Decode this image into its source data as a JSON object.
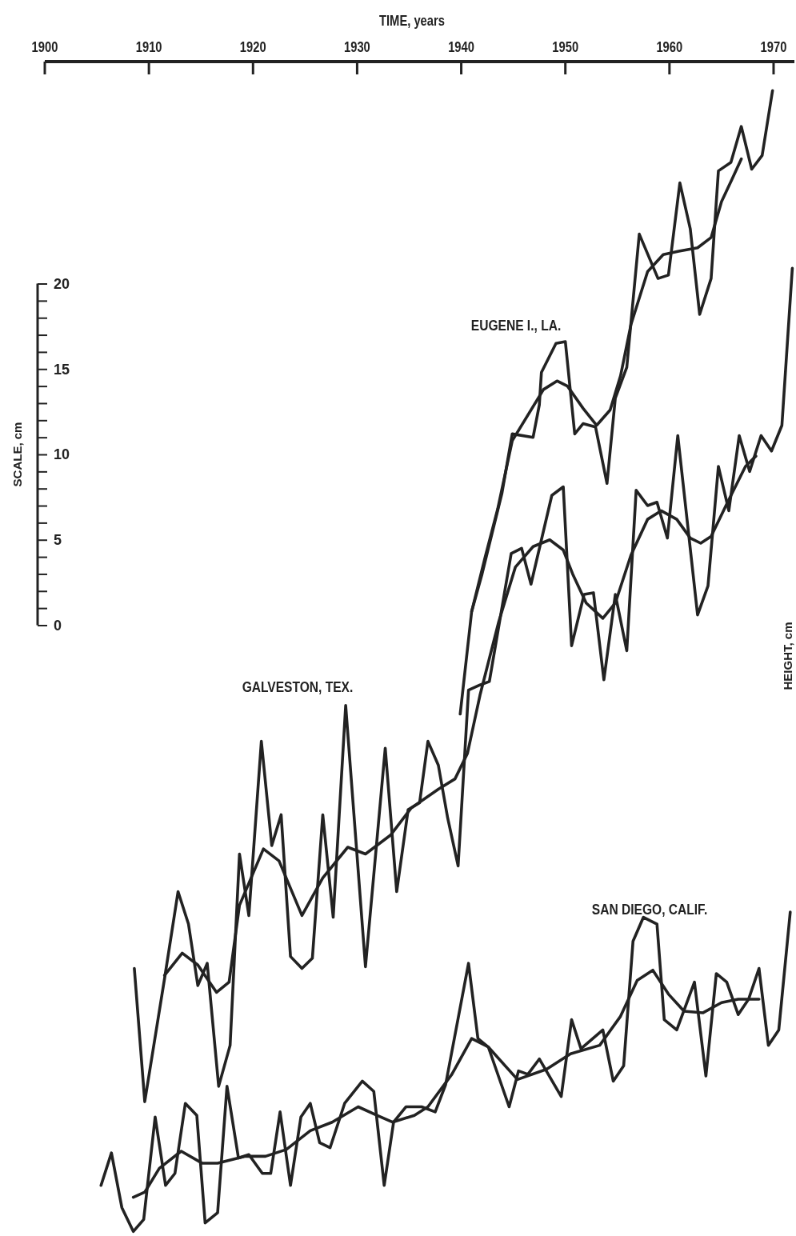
{
  "chart_data": {
    "type": "line",
    "xlabel": "TIME, years",
    "ylabel": "SCALE, cm",
    "y2label": "HEIGHT, cm",
    "xlim": [
      1900,
      1972
    ],
    "xticks": [
      1900,
      1910,
      1920,
      1930,
      1940,
      1950,
      1960,
      1970
    ],
    "ylim": [
      -36,
      33
    ],
    "yticks": [
      0,
      {
        "value": 1,
        "label": null
      },
      {
        "value": 2,
        "label": null
      },
      {
        "value": 3,
        "label": null
      },
      {
        "value": 4,
        "label": null
      },
      5,
      {
        "value": 6,
        "label": null
      },
      {
        "value": 7,
        "label": null
      },
      {
        "value": 8,
        "label": null
      },
      {
        "value": 9,
        "label": null
      },
      10,
      {
        "value": 11,
        "label": null
      },
      {
        "value": 12,
        "label": null
      },
      {
        "value": 13,
        "label": null
      },
      {
        "value": 14,
        "label": null
      },
      15,
      {
        "value": 16,
        "label": null
      },
      {
        "value": 17,
        "label": null
      },
      {
        "value": 18,
        "label": null
      },
      {
        "value": 19,
        "label": null
      },
      20
    ],
    "series": [
      {
        "name": "GALVESTON, TEX.",
        "color": "#222222",
        "x": [
          1908.6,
          1909.6,
          1911.5,
          1912.8,
          1913.8,
          1914.7,
          1915.6,
          1916.7,
          1917.8,
          1918.7,
          1919.6,
          1920.8,
          1921.8,
          1922.7,
          1923.6,
          1924.7,
          1925.7,
          1926.7,
          1927.7,
          1928.9,
          1930.8,
          1932.7,
          1933.8,
          1934.9,
          1936.0,
          1936.8,
          1937.8,
          1938.7,
          1939.7,
          1940.7,
          1941.8,
          1942.7,
          1944.8,
          1945.8,
          1946.7,
          1948.7,
          1949.8,
          1950.6,
          1951.8,
          1952.7,
          1953.7,
          1954.8,
          1955.9,
          1956.8,
          1957.9,
          1958.8,
          1959.8,
          1960.8,
          1962.7,
          1963.7,
          1964.7,
          1965.7,
          1966.7,
          1967.7,
          1968.8,
          1969.8,
          1970.8,
          1971.8
        ],
        "values": [
          -20.1,
          -27.9,
          -20.7,
          -15.6,
          -17.5,
          -21.1,
          -19.8,
          -27.0,
          -24.6,
          -13.4,
          -17.0,
          -6.8,
          -12.9,
          -11.1,
          -19.4,
          -20.1,
          -19.5,
          -11.1,
          -17.1,
          -4.7,
          -20.0,
          -7.2,
          -15.6,
          -10.8,
          -10.4,
          -6.8,
          -8.2,
          -11.3,
          -14.1,
          -3.8,
          -3.5,
          -3.3,
          4.2,
          4.5,
          2.4,
          7.6,
          8.1,
          -1.2,
          1.8,
          1.9,
          -3.2,
          1.8,
          -1.5,
          7.9,
          7.0,
          7.2,
          5.1,
          11.1,
          0.6,
          2.3,
          9.3,
          6.7,
          11.1,
          9.0,
          11.1,
          10.2,
          11.7,
          20.9
        ]
      },
      {
        "color": "#222222",
        "x": [
          1911.5,
          1913.2,
          1914.7,
          1916.5,
          1917.7,
          1918.7,
          1921.0,
          1922.5,
          1924.7,
          1926.7,
          1929.1,
          1930.8,
          1933.2,
          1935.2,
          1937.8,
          1939.4,
          1940.6,
          1941.8,
          1943.6,
          1945.2,
          1946.9,
          1948.5,
          1949.8,
          1950.7,
          1952.0,
          1953.6,
          1954.8,
          1956.3,
          1957.9,
          1959.2,
          1960.7,
          1962.0,
          1963.0,
          1964.0,
          1965.5,
          1967.3,
          1968.3
        ],
        "values": [
          -20.5,
          -19.2,
          -19.9,
          -21.5,
          -20.9,
          -16.4,
          -13.1,
          -13.8,
          -17.0,
          -14.8,
          -13.0,
          -13.4,
          -12.3,
          -10.7,
          -9.6,
          -9.0,
          -7.5,
          -4.1,
          0.2,
          3.4,
          4.6,
          5.0,
          4.4,
          3.0,
          1.3,
          0.4,
          1.3,
          4.1,
          6.2,
          6.7,
          6.2,
          5.1,
          4.8,
          5.2,
          7.1,
          9.3,
          9.9
        ]
      },
      {
        "name": "EUGENE I., LA.",
        "color": "#222222",
        "x": [
          1939.9,
          1941.0,
          1942.0,
          1943.9,
          1944.9,
          1946.9,
          1947.5,
          1947.7,
          1949.1,
          1950.0,
          1950.9,
          1951.7,
          1952.9,
          1954.0,
          1954.8,
          1955.9,
          1957.1,
          1958.9,
          1959.9,
          1961.0,
          1962.0,
          1962.9,
          1964.0,
          1964.7,
          1965.9,
          1966.9,
          1967.9,
          1968.9,
          1969.9
        ],
        "values": [
          -5.2,
          0.8,
          3.0,
          7.7,
          11.2,
          11.0,
          12.9,
          14.8,
          16.5,
          16.6,
          11.2,
          11.8,
          11.6,
          8.3,
          13.3,
          15.1,
          22.9,
          20.3,
          20.5,
          25.9,
          23.2,
          18.2,
          20.3,
          26.6,
          27.1,
          29.2,
          26.7,
          27.5,
          31.3
        ]
      },
      {
        "color": "#222222",
        "x": [
          1941.0,
          1942.3,
          1943.5,
          1944.9,
          1947.9,
          1949.2,
          1950.2,
          1951.7,
          1953.0,
          1954.3,
          1955.3,
          1956.3,
          1957.9,
          1959.4,
          1960.9,
          1962.7,
          1964.0,
          1965.0,
          1966.0,
          1966.9
        ],
        "values": [
          0.8,
          4.0,
          6.8,
          10.8,
          13.8,
          14.3,
          14.0,
          12.7,
          11.7,
          12.6,
          14.6,
          17.6,
          20.7,
          21.7,
          21.9,
          22.1,
          22.7,
          24.8,
          26.1,
          27.3
        ]
      },
      {
        "name": "SAN DIEGO, CALIF.",
        "color": "#222222",
        "x": [
          1905.4,
          1906.4,
          1907.4,
          1908.5,
          1909.5,
          1910.6,
          1911.6,
          1912.5,
          1913.5,
          1914.6,
          1915.4,
          1916.6,
          1917.5,
          1918.6,
          1919.6,
          1920.9,
          1921.7,
          1922.6,
          1923.6,
          1924.6,
          1925.5,
          1926.4,
          1927.4,
          1928.8,
          1930.5,
          1931.6,
          1932.6,
          1933.5,
          1934.7,
          1936.2,
          1937.5,
          1938.5,
          1940.7,
          1941.6,
          1942.6,
          1944.6,
          1945.5,
          1946.4,
          1947.5,
          1949.6,
          1950.6,
          1951.5,
          1953.6,
          1954.6,
          1955.6,
          1956.5,
          1957.5,
          1958.8,
          1959.5,
          1960.7,
          1962.4,
          1963.5,
          1964.5,
          1965.5,
          1966.6,
          1967.6,
          1968.6,
          1969.5,
          1970.5,
          1971.6
        ],
        "values": [
          -32.8,
          -30.9,
          -34.1,
          -35.5,
          -34.8,
          -28.8,
          -32.8,
          -32.1,
          -28.0,
          -28.7,
          -35.0,
          -34.4,
          -27.0,
          -31.2,
          -31.0,
          -32.1,
          -32.1,
          -28.5,
          -32.8,
          -28.8,
          -28.0,
          -30.3,
          -30.6,
          -28.0,
          -26.7,
          -27.3,
          -32.8,
          -29.1,
          -28.2,
          -28.2,
          -28.5,
          -26.9,
          -19.8,
          -24.2,
          -24.7,
          -28.2,
          -26.1,
          -26.3,
          -25.4,
          -27.6,
          -23.1,
          -24.8,
          -23.7,
          -26.7,
          -25.8,
          -18.5,
          -17.1,
          -17.5,
          -23.1,
          -23.7,
          -20.9,
          -26.4,
          -20.4,
          -20.9,
          -22.8,
          -21.9,
          -20.1,
          -24.6,
          -23.7,
          -16.8
        ]
      },
      {
        "color": "#222222",
        "x": [
          1908.5,
          1909.6,
          1911.0,
          1913.1,
          1915.1,
          1916.6,
          1919.2,
          1921.2,
          1923.2,
          1925.5,
          1927.6,
          1930.1,
          1931.9,
          1933.4,
          1935.5,
          1936.8,
          1939.1,
          1941.0,
          1942.6,
          1945.4,
          1948.2,
          1950.5,
          1953.3,
          1955.3,
          1956.9,
          1958.4,
          1959.9,
          1961.4,
          1963.2,
          1965.0,
          1966.6,
          1968.6
        ],
        "values": [
          -33.5,
          -33.2,
          -31.8,
          -30.8,
          -31.5,
          -31.5,
          -31.1,
          -31.1,
          -30.7,
          -29.6,
          -29.1,
          -28.2,
          -28.7,
          -29.1,
          -28.7,
          -28.2,
          -26.3,
          -24.2,
          -24.7,
          -26.6,
          -26.0,
          -25.1,
          -24.6,
          -22.9,
          -20.8,
          -20.2,
          -21.6,
          -22.6,
          -22.7,
          -22.1,
          -21.9,
          -21.9
        ]
      }
    ]
  }
}
